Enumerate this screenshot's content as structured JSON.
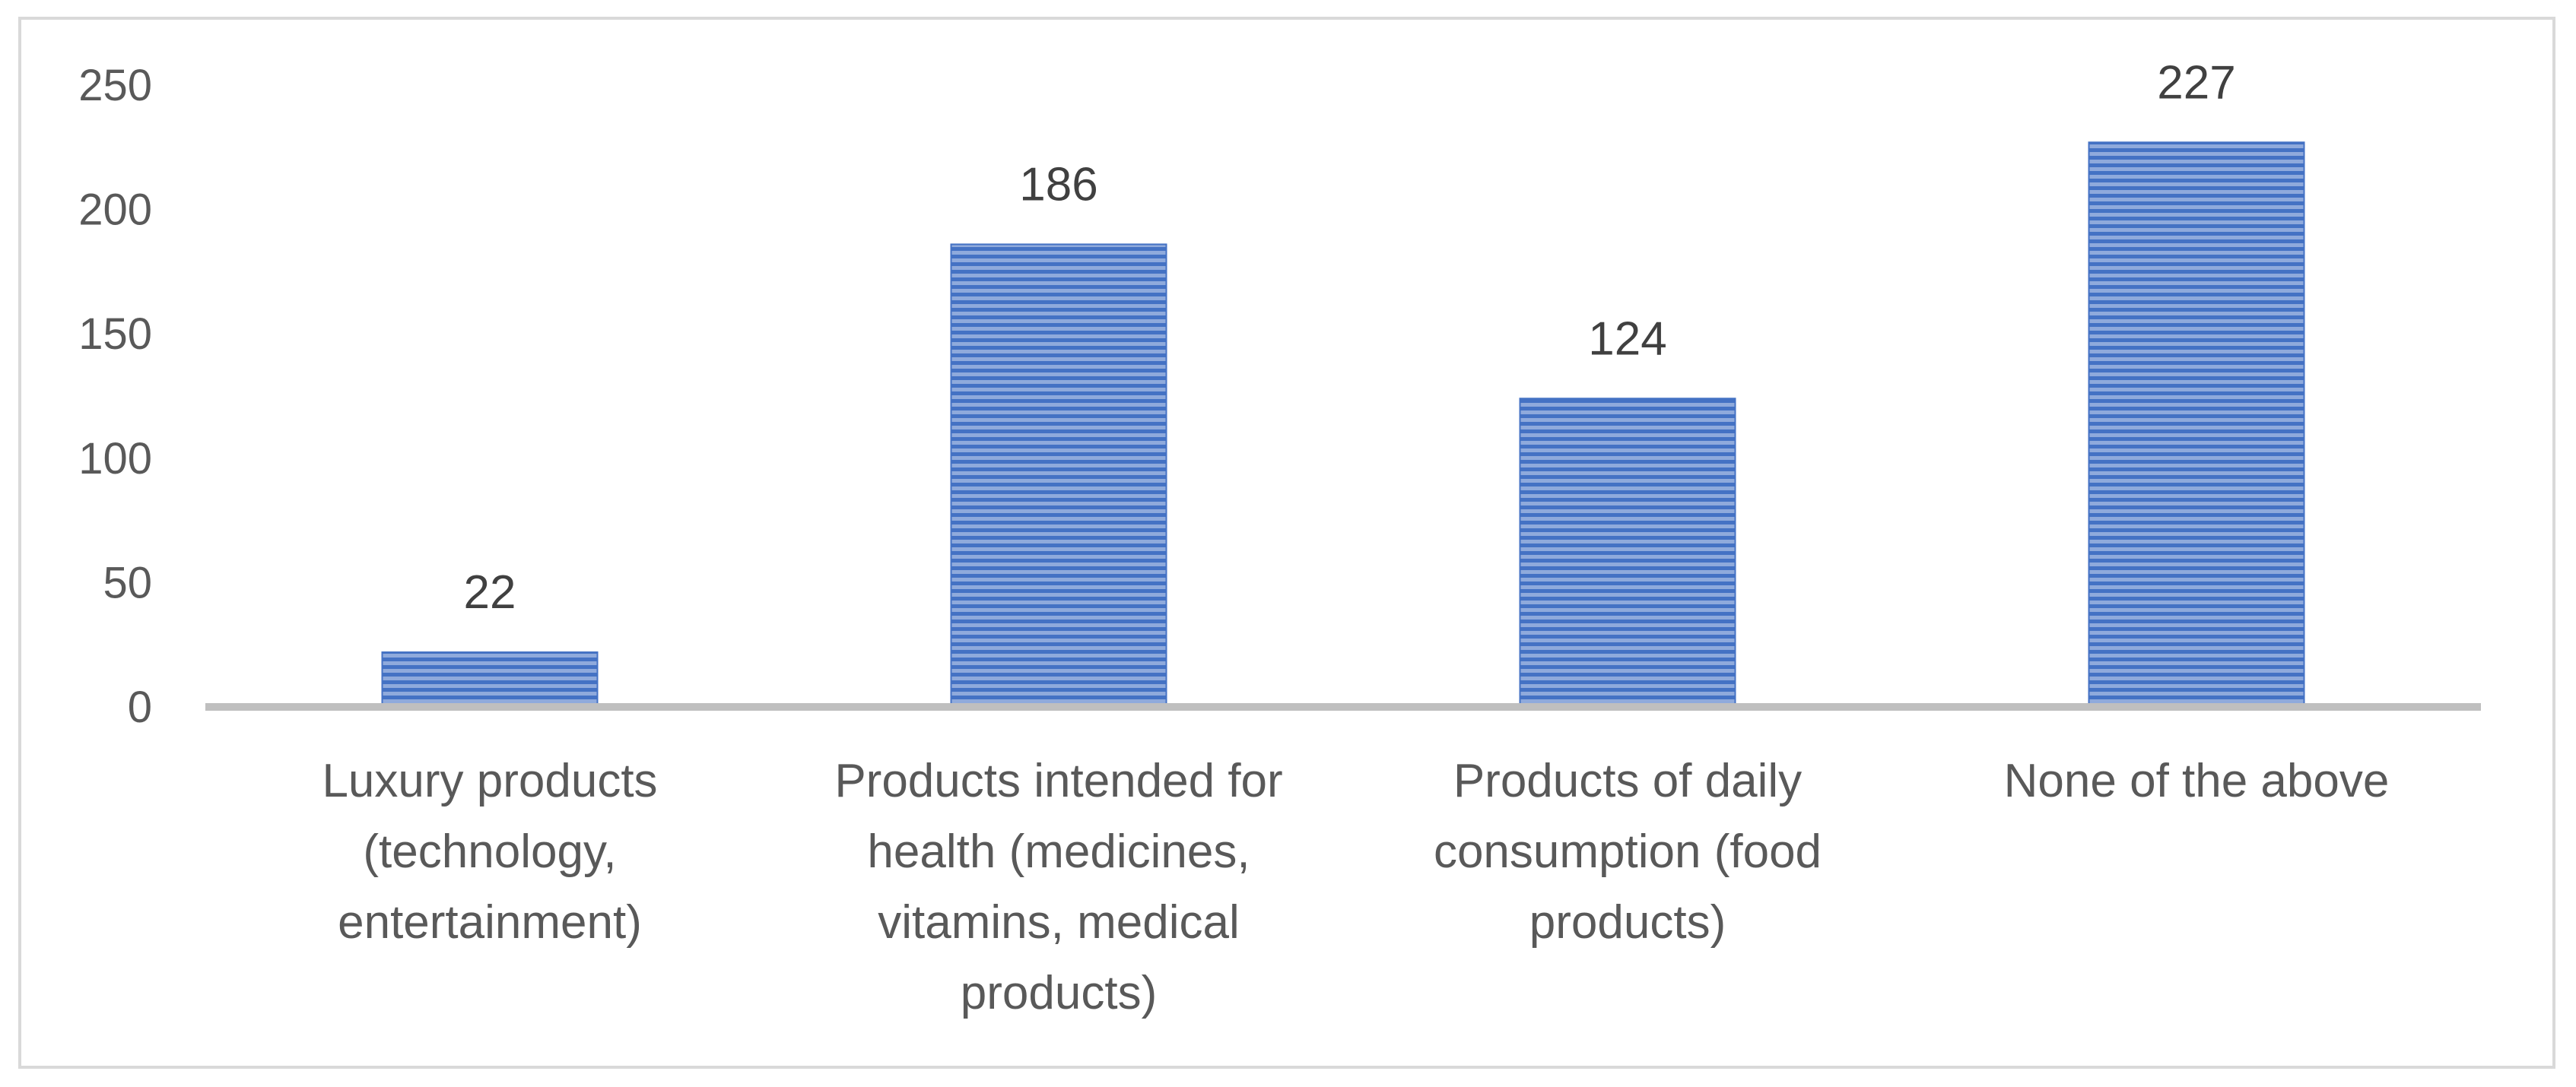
{
  "chart_data": {
    "type": "bar",
    "title": "",
    "xlabel": "",
    "ylabel": "",
    "categories": [
      [
        "Luxury products",
        "(technology,",
        "entertainment)"
      ],
      [
        "Products intended for",
        "health (medicines,",
        "vitamins, medical",
        "products)"
      ],
      [
        "Products of daily",
        "consumption (food",
        "products)"
      ],
      [
        "None of the above"
      ]
    ],
    "values": [
      22,
      186,
      124,
      227
    ],
    "ylim": [
      0,
      250
    ],
    "yticks": [
      0,
      50,
      100,
      150,
      200,
      250
    ],
    "grid": false,
    "legend": "none",
    "colors": {
      "bar_light": "#8faadc",
      "bar_dark": "#4472c4",
      "axis": "#bfbfbf"
    }
  }
}
